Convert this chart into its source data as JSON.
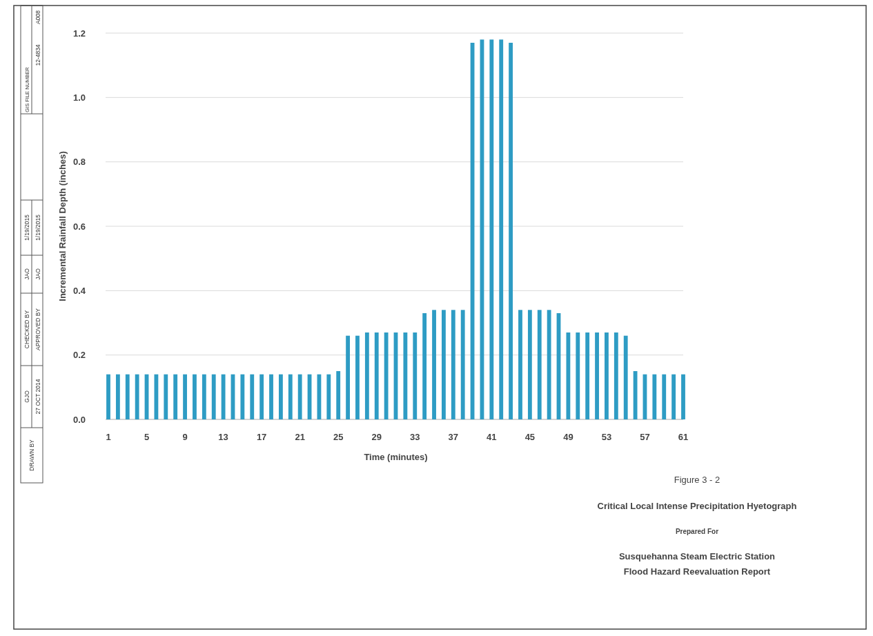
{
  "chart_data": {
    "type": "bar",
    "title": "Critical Local Intense Precipitation Hyetograph",
    "xlabel": "Time (minutes)",
    "ylabel": "Incremental Rainfall Depth (inches)",
    "categories": [
      "1",
      null,
      null,
      null,
      "5",
      null,
      null,
      null,
      "9",
      null,
      null,
      null,
      "13",
      null,
      null,
      null,
      "17",
      null,
      null,
      null,
      "21",
      null,
      null,
      null,
      "25",
      null,
      null,
      null,
      "29",
      null,
      null,
      null,
      "33",
      null,
      null,
      null,
      "37",
      null,
      null,
      null,
      "41",
      null,
      null,
      null,
      "45",
      null,
      null,
      null,
      "49",
      null,
      null,
      null,
      "53",
      null,
      null,
      null,
      "57",
      null,
      null,
      null,
      "61"
    ],
    "values": [
      0.14,
      0.14,
      0.14,
      0.14,
      0.14,
      0.14,
      0.14,
      0.14,
      0.14,
      0.14,
      0.14,
      0.14,
      0.14,
      0.14,
      0.14,
      0.14,
      0.14,
      0.14,
      0.14,
      0.14,
      0.14,
      0.14,
      0.14,
      0.14,
      0.15,
      0.26,
      0.26,
      0.27,
      0.27,
      0.27,
      0.27,
      0.27,
      0.27,
      0.33,
      0.34,
      0.34,
      0.34,
      0.34,
      1.17,
      1.18,
      1.18,
      1.18,
      1.17,
      0.34,
      0.34,
      0.34,
      0.34,
      0.33,
      0.27,
      0.27,
      0.27,
      0.27,
      0.27,
      0.27,
      0.26,
      0.15,
      0.14,
      0.14,
      0.14,
      0.14,
      0.14
    ],
    "color": "#2e9cc4",
    "ylim": [
      0,
      1.2
    ],
    "yticks": [
      {
        "value": 0,
        "label": "0.0"
      },
      {
        "value": 0.2,
        "label": "0.2"
      },
      {
        "value": 0.4,
        "label": "0.4"
      },
      {
        "value": 0.6,
        "label": "0.6"
      },
      {
        "value": 0.8,
        "label": "0.8"
      },
      {
        "value": 1,
        "label": "1.0"
      },
      {
        "value": 1.2,
        "label": "1.2"
      }
    ],
    "grid": "y",
    "annotations": [
      "Figure 3 - 2",
      "Prepared For",
      "Susquehanna Steam Electric Station",
      "Flood Hazard Reevaluation Report",
      "DRAWN BY",
      "GJO",
      "27 OCT 2014",
      "CHECKED BY",
      "APPROVED BY",
      "JAO",
      "JAO",
      "1/19/2015",
      "1/19/2015",
      "GIS FILE NUMBER",
      "12-4834",
      "A008"
    ]
  }
}
